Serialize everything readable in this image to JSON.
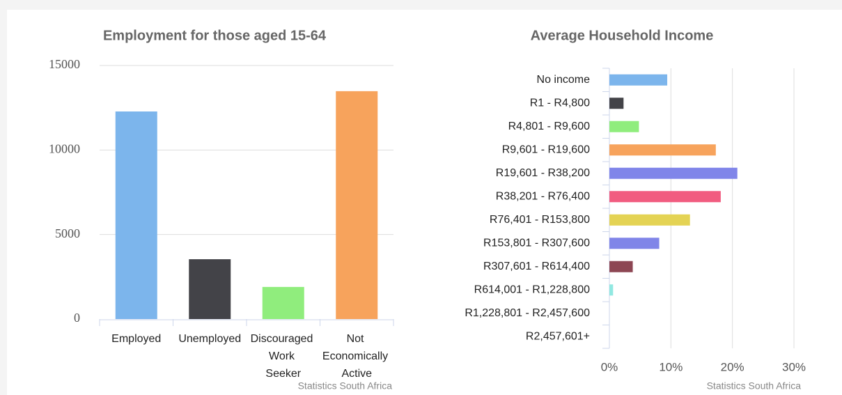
{
  "chart_data": [
    {
      "type": "bar",
      "title": "Employment for those aged 15-64",
      "categories": [
        "Employed",
        "Unemployed",
        "Discouraged Work Seeker",
        "Not Economically Active"
      ],
      "values": [
        12280,
        3540,
        1900,
        13480
      ],
      "colors": [
        "#7cb5ec",
        "#434348",
        "#90ed7d",
        "#f7a35c"
      ],
      "ylim": [
        0,
        15000
      ],
      "yticks": [
        0,
        5000,
        10000,
        15000
      ],
      "grid": true,
      "credits": "Statistics South Africa"
    },
    {
      "type": "hbar",
      "title": "Average Household Income",
      "categories": [
        "No income",
        "R1 - R4,800",
        "R4,801 - R9,600",
        "R9,601 - R19,600",
        "R19,601 - R38,200",
        "R38,201 - R76,400",
        "R76,401 - R153,800",
        "R153,801 - R307,600",
        "R307,601 - R614,400",
        "R614,001 - R1,228,800",
        "R1,228,801 - R2,457,600",
        "R2,457,601+"
      ],
      "values": [
        9.4,
        2.3,
        4.8,
        17.3,
        20.8,
        18.1,
        13.1,
        8.1,
        3.8,
        0.6,
        0,
        0
      ],
      "colors": [
        "#7cb5ec",
        "#434348",
        "#90ed7d",
        "#f7a35c",
        "#8085e9",
        "#f15c80",
        "#e4d354",
        "#8085e8",
        "#8d4653",
        "#91e8e1",
        "#7cb5ec",
        "#434348"
      ],
      "xlim": [
        0,
        30
      ],
      "xticks": [
        {
          "value": 0,
          "label": "0%"
        },
        {
          "value": 10,
          "label": "10%"
        },
        {
          "value": 20,
          "label": "20%"
        },
        {
          "value": 30,
          "label": "30%"
        }
      ],
      "grid": true,
      "credits": "Statistics South Africa"
    }
  ]
}
